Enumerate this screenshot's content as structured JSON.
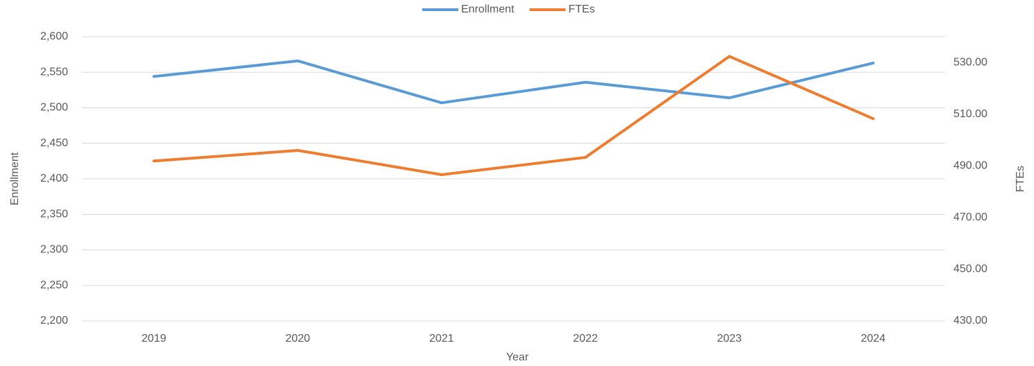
{
  "chart_data": {
    "type": "line",
    "categories": [
      "2019",
      "2020",
      "2021",
      "2022",
      "2023",
      "2024"
    ],
    "x_label": "Year",
    "y_label": "Enrollment",
    "y2_label": "FTEs",
    "series": [
      {
        "name": "Enrollment",
        "color": "#5b9bd5",
        "values": [
          2544,
          2566,
          2507,
          2536,
          2514,
          2563
        ]
      },
      {
        "name": "FTEs",
        "color": "#ed7d31",
        "axis": "y2",
        "values": [
          491.9,
          496.0,
          486.6,
          493.3,
          532.4,
          508.3
        ]
      }
    ],
    "ylim": [
      2200,
      2600
    ],
    "yticks": [
      {
        "value": 2200,
        "label": "2,200"
      },
      {
        "value": 2250,
        "label": "2,250"
      },
      {
        "value": 2300,
        "label": "2,300"
      },
      {
        "value": 2350,
        "label": "2,350"
      },
      {
        "value": 2400,
        "label": "2,400"
      },
      {
        "value": 2450,
        "label": "2,450"
      },
      {
        "value": 2500,
        "label": "2,500"
      },
      {
        "value": 2550,
        "label": "2,550"
      },
      {
        "value": 2600,
        "label": "2,600"
      }
    ],
    "y2lim": [
      430,
      540
    ],
    "y2ticks": [
      {
        "value": 430,
        "label": "430.00"
      },
      {
        "value": 450,
        "label": "450.00"
      },
      {
        "value": 470,
        "label": "470.00"
      },
      {
        "value": 490,
        "label": "490.00"
      },
      {
        "value": 510,
        "label": "510.00"
      },
      {
        "value": 530,
        "label": "530.00"
      }
    ],
    "grid": true,
    "legend": "top"
  }
}
